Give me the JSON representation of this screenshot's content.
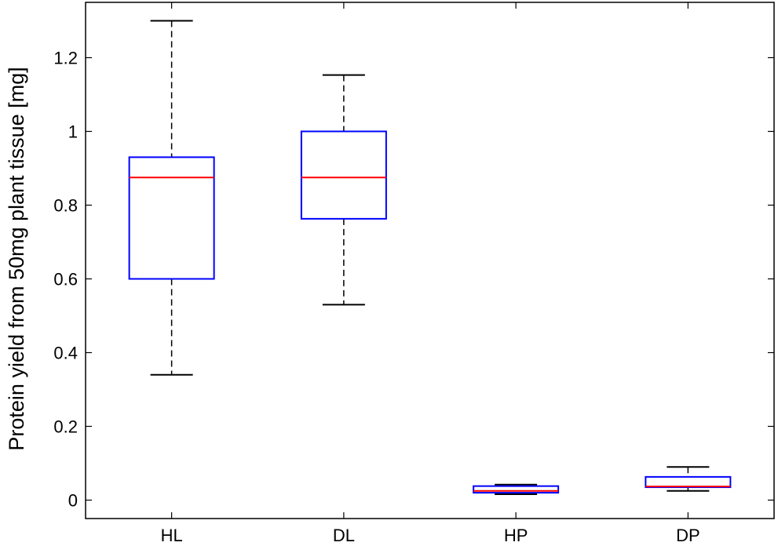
{
  "chart_data": {
    "type": "box",
    "title": "",
    "xlabel": "",
    "ylabel": "Protein yield from 50mg plant tissue [mg]",
    "ylim": [
      -0.05,
      1.35
    ],
    "yticks": [
      0,
      0.2,
      0.4,
      0.6,
      0.8,
      1,
      1.2
    ],
    "ytick_labels": [
      "0",
      "0.2",
      "0.4",
      "0.6",
      "0.8",
      "1",
      "1.2"
    ],
    "grid": false,
    "categories": [
      "HL",
      "DL",
      "HP",
      "DP"
    ],
    "boxes": [
      {
        "label": "HL",
        "whisker_low": 0.34,
        "q1": 0.6,
        "median": 0.875,
        "q3": 0.93,
        "whisker_high": 1.3
      },
      {
        "label": "DL",
        "whisker_low": 0.53,
        "q1": 0.763,
        "median": 0.875,
        "q3": 1.0,
        "whisker_high": 1.153
      },
      {
        "label": "HP",
        "whisker_low": 0.016,
        "q1": 0.02,
        "median": 0.025,
        "q3": 0.038,
        "whisker_high": 0.042
      },
      {
        "label": "DP",
        "whisker_low": 0.025,
        "q1": 0.035,
        "median": 0.037,
        "q3": 0.063,
        "whisker_high": 0.09
      }
    ],
    "colors": {
      "box": "#0000ff",
      "median": "#ff0000",
      "whisker": "#000000",
      "axes": "#000000"
    }
  }
}
